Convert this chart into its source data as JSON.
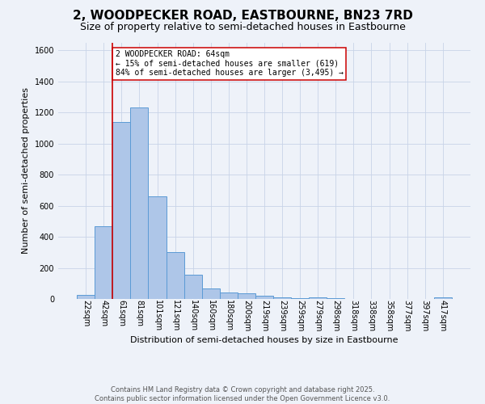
{
  "title": "2, WOODPECKER ROAD, EASTBOURNE, BN23 7RD",
  "subtitle": "Size of property relative to semi-detached houses in Eastbourne",
  "xlabel": "Distribution of semi-detached houses by size in Eastbourne",
  "ylabel": "Number of semi-detached properties",
  "categories": [
    "22sqm",
    "42sqm",
    "61sqm",
    "81sqm",
    "101sqm",
    "121sqm",
    "140sqm",
    "160sqm",
    "180sqm",
    "200sqm",
    "219sqm",
    "239sqm",
    "259sqm",
    "279sqm",
    "298sqm",
    "318sqm",
    "338sqm",
    "358sqm",
    "377sqm",
    "397sqm",
    "417sqm"
  ],
  "values": [
    25,
    470,
    1140,
    1230,
    660,
    300,
    155,
    65,
    40,
    35,
    20,
    10,
    5,
    8,
    3,
    2,
    2,
    1,
    1,
    1,
    10
  ],
  "bar_color": "#aec6e8",
  "bar_edge_color": "#5b9bd5",
  "grid_color": "#c8d4e8",
  "background_color": "#eef2f9",
  "property_line_color": "#cc0000",
  "annotation_text": "2 WOODPECKER ROAD: 64sqm\n← 15% of semi-detached houses are smaller (619)\n84% of semi-detached houses are larger (3,495) →",
  "annotation_box_color": "#ffffff",
  "annotation_box_edge": "#cc0000",
  "footnote": "Contains HM Land Registry data © Crown copyright and database right 2025.\nContains public sector information licensed under the Open Government Licence v3.0.",
  "ylim": [
    0,
    1650
  ],
  "title_fontsize": 11,
  "subtitle_fontsize": 9,
  "ylabel_fontsize": 8,
  "xlabel_fontsize": 8,
  "tick_fontsize": 7,
  "annot_fontsize": 7,
  "footnote_fontsize": 6
}
